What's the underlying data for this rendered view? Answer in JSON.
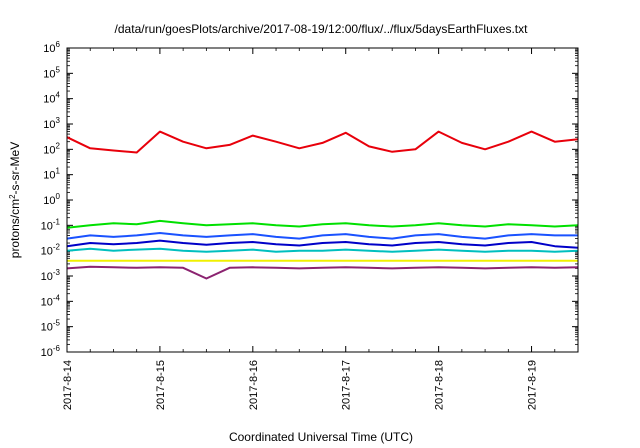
{
  "chart_data": {
    "type": "line",
    "title": "/data/run/goesPlots/archive/2017-08-19/12:00/flux/../flux/5daysEarthFluxes.txt",
    "xlabel": "Coordinated Universal Time (UTC)",
    "ylabel": "protons/cm²-s-sr-MeV",
    "ylabel_parts": {
      "before": "protons/cm",
      "sup": "2",
      "after": "-s-sr-MeV"
    },
    "y_scale": "log",
    "ylim": [
      1e-06,
      1000000.0
    ],
    "y_ticks": [
      {
        "value": 1000000.0,
        "base": "10",
        "exp": "6"
      },
      {
        "value": 100000.0,
        "base": "10",
        "exp": "5"
      },
      {
        "value": 10000.0,
        "base": "10",
        "exp": "4"
      },
      {
        "value": 1000.0,
        "base": "10",
        "exp": "3"
      },
      {
        "value": 100.0,
        "base": "10",
        "exp": "2"
      },
      {
        "value": 10.0,
        "base": "10",
        "exp": "1"
      },
      {
        "value": 1.0,
        "base": "10",
        "exp": "0"
      },
      {
        "value": 0.1,
        "base": "10",
        "exp": "-1"
      },
      {
        "value": 0.01,
        "base": "10",
        "exp": "-2"
      },
      {
        "value": 0.001,
        "base": "10",
        "exp": "-3"
      },
      {
        "value": 0.0001,
        "base": "10",
        "exp": "-4"
      },
      {
        "value": 1e-05,
        "base": "10",
        "exp": "-5"
      },
      {
        "value": 1e-06,
        "base": "10",
        "exp": "-6"
      }
    ],
    "xlim": [
      "2017-08-14T00:00",
      "2017-08-19T12:00"
    ],
    "x_ticks": [
      "2017-8-14",
      "2017-8-15",
      "2017-8-16",
      "2017-8-17",
      "2017-8-18",
      "2017-8-19"
    ],
    "x_tick_dates": [
      "2017-08-14",
      "2017-08-15",
      "2017-08-16",
      "2017-08-17",
      "2017-08-18",
      "2017-08-19"
    ],
    "grid": false,
    "legend": "none",
    "series": [
      {
        "color": "#e8000b",
        "x": [
          "2017-08-14T00:00",
          "2017-08-14T06:00",
          "2017-08-14T12:00",
          "2017-08-14T18:00",
          "2017-08-15T00:00",
          "2017-08-15T06:00",
          "2017-08-15T12:00",
          "2017-08-15T18:00",
          "2017-08-16T00:00",
          "2017-08-16T06:00",
          "2017-08-16T12:00",
          "2017-08-16T18:00",
          "2017-08-17T00:00",
          "2017-08-17T06:00",
          "2017-08-17T12:00",
          "2017-08-17T18:00",
          "2017-08-18T00:00",
          "2017-08-18T06:00",
          "2017-08-18T12:00",
          "2017-08-18T18:00",
          "2017-08-19T00:00",
          "2017-08-19T06:00",
          "2017-08-19T12:00"
        ],
        "values": [
          300,
          110,
          90,
          75,
          500,
          200,
          110,
          150,
          350,
          200,
          110,
          180,
          450,
          130,
          80,
          100,
          500,
          180,
          100,
          200,
          500,
          200,
          250
        ]
      },
      {
        "color": "#00e000",
        "x": [
          "2017-08-14T00:00",
          "2017-08-14T06:00",
          "2017-08-14T12:00",
          "2017-08-14T18:00",
          "2017-08-15T00:00",
          "2017-08-15T06:00",
          "2017-08-15T12:00",
          "2017-08-15T18:00",
          "2017-08-16T00:00",
          "2017-08-16T06:00",
          "2017-08-16T12:00",
          "2017-08-16T18:00",
          "2017-08-17T00:00",
          "2017-08-17T06:00",
          "2017-08-17T12:00",
          "2017-08-17T18:00",
          "2017-08-18T00:00",
          "2017-08-18T06:00",
          "2017-08-18T12:00",
          "2017-08-18T18:00",
          "2017-08-19T00:00",
          "2017-08-19T06:00",
          "2017-08-19T12:00"
        ],
        "values": [
          0.08,
          0.1,
          0.12,
          0.11,
          0.15,
          0.12,
          0.1,
          0.11,
          0.12,
          0.1,
          0.09,
          0.11,
          0.12,
          0.1,
          0.09,
          0.1,
          0.12,
          0.1,
          0.09,
          0.11,
          0.1,
          0.09,
          0.1
        ]
      },
      {
        "color": "#00bfbf",
        "x": [
          "2017-08-14T00:00",
          "2017-08-14T06:00",
          "2017-08-14T12:00",
          "2017-08-14T18:00",
          "2017-08-15T00:00",
          "2017-08-15T06:00",
          "2017-08-15T12:00",
          "2017-08-15T18:00",
          "2017-08-16T00:00",
          "2017-08-16T06:00",
          "2017-08-16T12:00",
          "2017-08-16T18:00",
          "2017-08-17T00:00",
          "2017-08-17T06:00",
          "2017-08-17T12:00",
          "2017-08-17T18:00",
          "2017-08-18T00:00",
          "2017-08-18T06:00",
          "2017-08-18T12:00",
          "2017-08-18T18:00",
          "2017-08-19T00:00",
          "2017-08-19T06:00",
          "2017-08-19T12:00"
        ],
        "values": [
          0.01,
          0.012,
          0.01,
          0.011,
          0.012,
          0.01,
          0.009,
          0.01,
          0.011,
          0.009,
          0.01,
          0.01,
          0.011,
          0.01,
          0.009,
          0.01,
          0.011,
          0.01,
          0.009,
          0.01,
          0.01,
          0.009,
          0.01
        ]
      },
      {
        "color": "#1a52ff",
        "x": [
          "2017-08-14T00:00",
          "2017-08-14T06:00",
          "2017-08-14T12:00",
          "2017-08-14T18:00",
          "2017-08-15T00:00",
          "2017-08-15T06:00",
          "2017-08-15T12:00",
          "2017-08-15T18:00",
          "2017-08-16T00:00",
          "2017-08-16T06:00",
          "2017-08-16T12:00",
          "2017-08-16T18:00",
          "2017-08-17T00:00",
          "2017-08-17T06:00",
          "2017-08-17T12:00",
          "2017-08-17T18:00",
          "2017-08-18T00:00",
          "2017-08-18T06:00",
          "2017-08-18T12:00",
          "2017-08-18T18:00",
          "2017-08-19T00:00",
          "2017-08-19T06:00",
          "2017-08-19T12:00"
        ],
        "values": [
          0.03,
          0.04,
          0.035,
          0.04,
          0.05,
          0.04,
          0.035,
          0.04,
          0.045,
          0.035,
          0.03,
          0.04,
          0.045,
          0.035,
          0.03,
          0.04,
          0.045,
          0.035,
          0.03,
          0.04,
          0.045,
          0.04,
          0.04
        ]
      },
      {
        "color": "#0000c8",
        "x": [
          "2017-08-14T00:00",
          "2017-08-14T06:00",
          "2017-08-14T12:00",
          "2017-08-14T18:00",
          "2017-08-15T00:00",
          "2017-08-15T06:00",
          "2017-08-15T12:00",
          "2017-08-15T18:00",
          "2017-08-16T00:00",
          "2017-08-16T06:00",
          "2017-08-16T12:00",
          "2017-08-16T18:00",
          "2017-08-17T00:00",
          "2017-08-17T06:00",
          "2017-08-17T12:00",
          "2017-08-17T18:00",
          "2017-08-18T00:00",
          "2017-08-18T06:00",
          "2017-08-18T12:00",
          "2017-08-18T18:00",
          "2017-08-19T00:00",
          "2017-08-19T06:00",
          "2017-08-19T12:00"
        ],
        "values": [
          0.015,
          0.02,
          0.018,
          0.02,
          0.025,
          0.02,
          0.017,
          0.02,
          0.022,
          0.018,
          0.016,
          0.02,
          0.022,
          0.018,
          0.016,
          0.02,
          0.022,
          0.018,
          0.016,
          0.02,
          0.022,
          0.015,
          0.013
        ]
      },
      {
        "color": "#f0f000",
        "x": [
          "2017-08-14T00:00",
          "2017-08-19T12:00"
        ],
        "values": [
          0.004,
          0.004
        ]
      },
      {
        "color": "#8b2370",
        "x": [
          "2017-08-14T00:00",
          "2017-08-14T06:00",
          "2017-08-14T12:00",
          "2017-08-14T18:00",
          "2017-08-15T00:00",
          "2017-08-15T06:00",
          "2017-08-15T12:00",
          "2017-08-15T18:00",
          "2017-08-16T00:00",
          "2017-08-16T06:00",
          "2017-08-16T12:00",
          "2017-08-16T18:00",
          "2017-08-17T00:00",
          "2017-08-17T06:00",
          "2017-08-17T12:00",
          "2017-08-17T18:00",
          "2017-08-18T00:00",
          "2017-08-18T06:00",
          "2017-08-18T12:00",
          "2017-08-18T18:00",
          "2017-08-19T00:00",
          "2017-08-19T06:00",
          "2017-08-19T12:00"
        ],
        "values": [
          0.002,
          0.0023,
          0.0022,
          0.0021,
          0.0022,
          0.0021,
          0.0008,
          0.0021,
          0.0022,
          0.0021,
          0.002,
          0.0021,
          0.0022,
          0.0021,
          0.002,
          0.0021,
          0.0022,
          0.0021,
          0.002,
          0.0021,
          0.0022,
          0.0021,
          0.0022
        ]
      }
    ]
  }
}
